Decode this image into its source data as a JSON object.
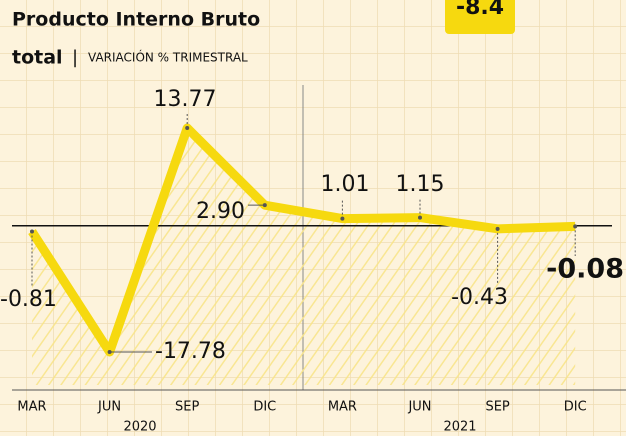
{
  "chart_data": {
    "type": "line",
    "title": "Producto Interno Bruto",
    "title_line2": "total",
    "subtitle": "VARIACIÓN % TRIMESTRAL",
    "annotation": "-8.4",
    "categories": [
      "MAR",
      "JUN",
      "SEP",
      "DIC",
      "MAR",
      "JUN",
      "SEP",
      "DIC"
    ],
    "years": [
      "2020",
      "2021"
    ],
    "values": [
      -0.81,
      -17.78,
      13.77,
      2.9,
      1.01,
      1.15,
      -0.43,
      -0.08
    ],
    "value_labels": [
      "-0.81",
      "-17.78",
      "13.77",
      "2.90",
      "1.01",
      "1.15",
      "-0.43",
      "-0.08"
    ],
    "color": "#f6d90f",
    "grid": true
  }
}
